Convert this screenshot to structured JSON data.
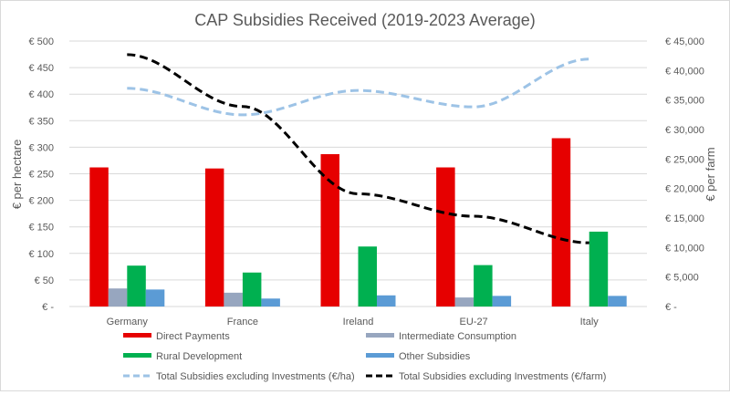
{
  "chart_data": {
    "type": "bar",
    "title": "CAP Subsidies Received (2019-2023 Average)",
    "xlabel": "",
    "ylabel": "€ per hectare",
    "y2label": "€ per farm",
    "categories": [
      "Germany",
      "France",
      "Ireland",
      "EU-27",
      "Italy"
    ],
    "ylim": [
      0,
      500
    ],
    "y2lim": [
      0,
      45000
    ],
    "grid": true,
    "legend_position": "bottom",
    "yticks": [
      0,
      50,
      100,
      150,
      200,
      250,
      300,
      350,
      400,
      450,
      500
    ],
    "ytick_labels": [
      "€ -",
      "€ 50",
      "€ 100",
      "€ 150",
      "€ 200",
      "€ 250",
      "€ 300",
      "€ 350",
      "€ 400",
      "€ 450",
      "€ 500"
    ],
    "y2ticks": [
      0,
      5000,
      10000,
      15000,
      20000,
      25000,
      30000,
      35000,
      40000,
      45000
    ],
    "y2tick_labels": [
      "€ -",
      "€ 5,000",
      "€ 10,000",
      "€ 15,000",
      "€ 20,000",
      "€ 25,000",
      "€ 30,000",
      "€ 35,000",
      "€ 40,000",
      "€ 45,000"
    ],
    "series": [
      {
        "name": "Direct Payments",
        "type": "bar",
        "axis": "left",
        "color": "#e60000",
        "values": [
          262,
          260,
          287,
          262,
          317
        ]
      },
      {
        "name": "Intermediate Consumption",
        "type": "bar",
        "axis": "left",
        "color": "#97a6bf",
        "values": [
          34,
          26,
          0,
          17,
          0
        ]
      },
      {
        "name": "Rural Development",
        "type": "bar",
        "axis": "left",
        "color": "#00b050",
        "values": [
          77,
          64,
          113,
          78,
          141
        ]
      },
      {
        "name": "Other Subsidies",
        "type": "bar",
        "axis": "left",
        "color": "#5b9bd5",
        "values": [
          32,
          15,
          21,
          20,
          20
        ]
      },
      {
        "name": "Total Subsidies excluding Investments (€/ha)",
        "type": "line",
        "style": "dashed",
        "axis": "left",
        "color": "#9dc3e6",
        "values": [
          411,
          361,
          407,
          376,
          466
        ]
      },
      {
        "name": "Total Subsidies excluding Investments (€/farm)",
        "type": "line",
        "style": "dashed",
        "axis": "right",
        "color": "#000000",
        "values": [
          42700,
          33900,
          19100,
          15300,
          10800
        ]
      }
    ]
  }
}
